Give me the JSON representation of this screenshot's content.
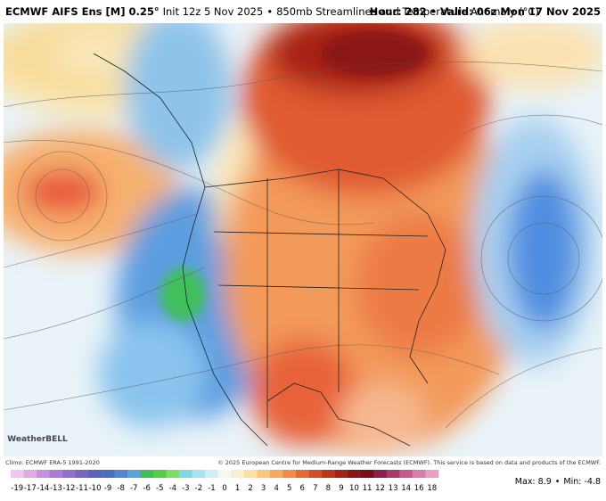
{
  "header": {
    "model": "ECMWF AIFS Ens [M] 0.25°",
    "init": "Init 12z 5 Nov 2025",
    "product": "850mb Streamlines and Temperature Anomaly (°C)",
    "hour": "Hour: 282",
    "valid": "Valid: 06z Mon 17 Nov 2025",
    "separator": "•"
  },
  "logo": "WeatherBELL",
  "footer": {
    "climo": "Climo: ECMWF ERA-5 1991-2020",
    "copyright": "© 2025 European Centre for Medium-Range Weather Forecasts (ECMWF). This service is based on data and products of the ECMWF."
  },
  "colorbar": {
    "ticks": [
      -19,
      -17,
      -14,
      -13,
      -12,
      -11,
      -10,
      -9,
      -8,
      -7,
      -6,
      -5,
      -4,
      -3,
      -2,
      -1,
      0,
      1,
      2,
      3,
      4,
      5,
      6,
      7,
      8,
      9,
      10,
      11,
      12,
      13,
      14,
      16,
      18
    ],
    "colors": [
      "#f2c6ef",
      "#e3a8e6",
      "#c98fde",
      "#ad7bd6",
      "#9070cc",
      "#7468c2",
      "#5d63b8",
      "#4c6dc0",
      "#4f86d0",
      "#5aa2dc",
      "#3fbf5a",
      "#55cc44",
      "#7fdc66",
      "#7fd8e8",
      "#a6e2f0",
      "#d2eef7",
      "#f7f7f2",
      "#fbeecb",
      "#fde0a0",
      "#fcc77a",
      "#f9a85a",
      "#f08a45",
      "#e46a33",
      "#d44f27",
      "#bd351d",
      "#a32218",
      "#8a1515",
      "#7a0f1c",
      "#8c1f45",
      "#a83a6a",
      "#c45a8c",
      "#d87caa",
      "#ea9fc6"
    ]
  },
  "stats": {
    "max": "Max: 8.9",
    "min": "Min: -4.8"
  }
}
